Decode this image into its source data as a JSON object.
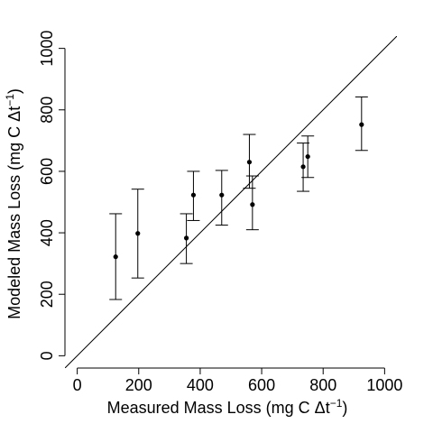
{
  "chart_data": {
    "type": "scatter",
    "title": "",
    "xlabel": "Measured Mass Loss (mg C Δt",
    "xlabel_sup": "−1",
    "xlabel_end": ")",
    "ylabel": "Modeled Mass Loss (mg C Δt",
    "ylabel_sup": "−1",
    "ylabel_end": ")",
    "xlim": [
      -40,
      1040
    ],
    "ylim": [
      -40,
      1040
    ],
    "xticks": [
      0,
      200,
      400,
      600,
      800,
      1000
    ],
    "yticks": [
      0,
      200,
      400,
      600,
      800,
      1000
    ],
    "xtick_labels": [
      "0",
      "200",
      "400",
      "600",
      "800",
      "1000"
    ],
    "ytick_labels": [
      "0",
      "200",
      "400",
      "600",
      "800",
      "1000"
    ],
    "reference_line": {
      "type": "1:1",
      "slope": 1,
      "intercept": 0
    },
    "grid": false,
    "legend": "none",
    "points": [
      {
        "x": 125,
        "y": 322,
        "lo": 183,
        "hi": 462
      },
      {
        "x": 197,
        "y": 398,
        "lo": 253,
        "hi": 542
      },
      {
        "x": 355,
        "y": 383,
        "lo": 300,
        "hi": 462
      },
      {
        "x": 378,
        "y": 523,
        "lo": 440,
        "hi": 600
      },
      {
        "x": 470,
        "y": 523,
        "lo": 425,
        "hi": 603
      },
      {
        "x": 560,
        "y": 630,
        "lo": 545,
        "hi": 720
      },
      {
        "x": 570,
        "y": 492,
        "lo": 410,
        "hi": 585
      },
      {
        "x": 735,
        "y": 615,
        "lo": 535,
        "hi": 692
      },
      {
        "x": 750,
        "y": 648,
        "lo": 580,
        "hi": 715
      },
      {
        "x": 925,
        "y": 752,
        "lo": 668,
        "hi": 842
      }
    ]
  }
}
